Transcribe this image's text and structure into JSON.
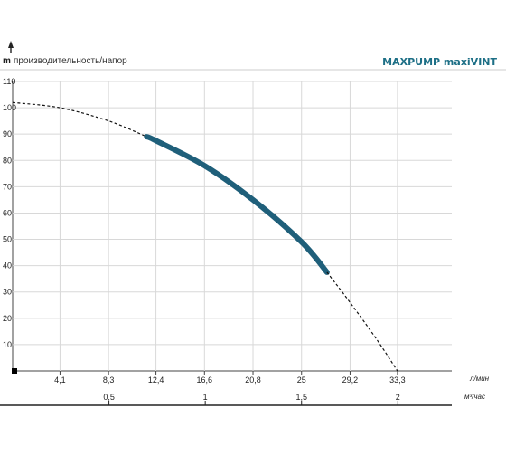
{
  "chart_data": {
    "type": "line",
    "title": "MAXPUMP maxiVINT",
    "ylabel_unit": "m",
    "ylabel": "производительность/напор",
    "y_ticks": [
      "10",
      "20",
      "30",
      "40",
      "50",
      "60",
      "70",
      "80",
      "90",
      "100",
      "110"
    ],
    "ylim": [
      0,
      110
    ],
    "x_unit_lmin": "л/мин",
    "x_ticks_lmin": [
      "4,1",
      "8,3",
      "12,4",
      "16,6",
      "20,8",
      "25",
      "29,2",
      "33,3"
    ],
    "x_unit_m3h": "м³/час",
    "x_ticks_m3h": [
      "0,5",
      "1",
      "1,5",
      "2"
    ],
    "xlim_lmin": [
      0,
      38
    ],
    "series": [
      {
        "style": "dashed",
        "x": [
          0,
          4.1,
          8.3,
          11.6
        ],
        "y": [
          102,
          100,
          95,
          89
        ]
      },
      {
        "style": "solid-thick",
        "color": "#1f5f7a",
        "x": [
          11.6,
          12.4,
          16.6,
          20.8,
          25,
          27.2
        ],
        "y": [
          89,
          87.5,
          78,
          65,
          49,
          37.5
        ]
      },
      {
        "style": "dashed",
        "x": [
          27.2,
          29.2,
          31.5,
          33.3
        ],
        "y": [
          37.5,
          26,
          12,
          0
        ]
      }
    ]
  }
}
